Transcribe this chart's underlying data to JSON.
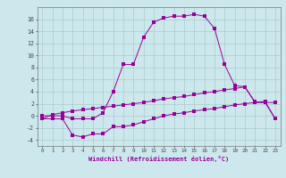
{
  "xlabel": "Windchill (Refroidissement éolien,°C)",
  "background_color": "#cce8ec",
  "grid_color": "#aacccc",
  "line_color": "#990099",
  "hours": [
    0,
    1,
    2,
    3,
    4,
    5,
    6,
    7,
    8,
    9,
    10,
    11,
    12,
    13,
    14,
    15,
    16,
    17,
    18,
    19,
    20,
    21,
    22,
    23
  ],
  "line1": [
    0.0,
    0.0,
    0.0,
    -0.5,
    -0.5,
    -0.5,
    0.5,
    4.0,
    8.5,
    8.5,
    13.0,
    15.5,
    16.2,
    16.5,
    16.5,
    16.8,
    16.5,
    14.5,
    8.5,
    5.0,
    4.8,
    2.3,
    2.2,
    2.2
  ],
  "line2": [
    -0.5,
    0.2,
    0.5,
    0.8,
    1.0,
    1.2,
    1.4,
    1.6,
    1.8,
    2.0,
    2.2,
    2.5,
    2.8,
    3.0,
    3.2,
    3.5,
    3.8,
    4.0,
    4.3,
    4.5,
    4.8,
    2.2,
    2.2,
    -0.5
  ],
  "line3": [
    -0.5,
    -0.5,
    -0.5,
    -3.2,
    -3.5,
    -3.0,
    -3.0,
    -1.8,
    -1.8,
    -1.5,
    -1.0,
    -0.5,
    0.0,
    0.3,
    0.5,
    0.8,
    1.0,
    1.2,
    1.5,
    1.8,
    2.0,
    2.2,
    2.4,
    -0.5
  ],
  "ylim": [
    -5,
    18
  ],
  "yticks": [
    -4,
    -2,
    0,
    2,
    4,
    6,
    8,
    10,
    12,
    14,
    16
  ],
  "xlim": [
    -0.5,
    23.5
  ]
}
